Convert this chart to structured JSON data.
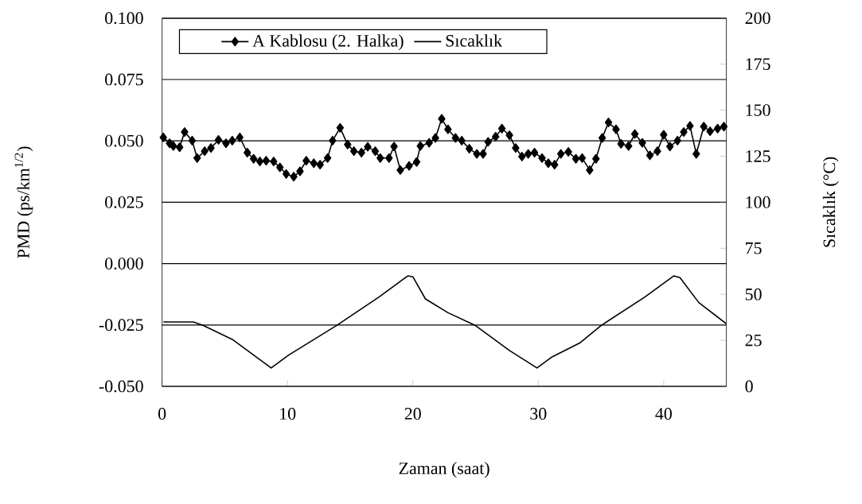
{
  "chart_data": {
    "type": "line",
    "xlabel": "Zaman (saat)",
    "ylabel": "PMD (ps/km$^{1/2}$)",
    "y2label": "Sıcaklık (°C)",
    "xlim": [
      0,
      45
    ],
    "xticks": [
      0,
      10,
      20,
      30,
      40
    ],
    "ylim": [
      -0.05,
      0.1
    ],
    "yticks": [
      {
        "value": -0.05,
        "label": "-0.050"
      },
      {
        "value": -0.025,
        "label": "-0.025"
      },
      {
        "value": 0,
        "label": "0.000"
      },
      {
        "value": 0.025,
        "label": "0.025"
      },
      {
        "value": 0.05,
        "label": "0.050"
      },
      {
        "value": 0.075,
        "label": "0.075"
      },
      {
        "value": 0.1,
        "label": "0.100"
      }
    ],
    "y2lim": [
      0,
      200
    ],
    "y2ticks": [
      0,
      25,
      50,
      75,
      100,
      125,
      150,
      175,
      200
    ],
    "grid": "y",
    "legend": "top left",
    "series": [
      {
        "name": "A Kablosu (2. Halka)",
        "marker": "diamond",
        "color": "#000000",
        "x": [
          0.1,
          0.6,
          0.9,
          1.4,
          1.8,
          2.4,
          2.8,
          3.4,
          3.9,
          4.5,
          5.1,
          5.6,
          6.2,
          6.8,
          7.3,
          7.8,
          8.3,
          8.9,
          9.4,
          9.9,
          10.5,
          11.0,
          11.5,
          12.1,
          12.6,
          13.2,
          13.6,
          14.2,
          14.8,
          15.3,
          15.9,
          16.4,
          17.0,
          17.4,
          18.1,
          18.5,
          19.0,
          19.7,
          20.3,
          20.6,
          21.3,
          21.8,
          22.3,
          22.8,
          23.4,
          23.9,
          24.5,
          25.1,
          25.6,
          26.0,
          26.6,
          27.1,
          27.7,
          28.2,
          28.7,
          29.2,
          29.7,
          30.3,
          30.8,
          31.3,
          31.8,
          32.4,
          33.0,
          33.5,
          34.1,
          34.6,
          35.1,
          35.6,
          36.2,
          36.6,
          37.2,
          37.7,
          38.3,
          38.9,
          39.5,
          40.0,
          40.5,
          41.1,
          41.6,
          42.1,
          42.6,
          43.2,
          43.7,
          44.3,
          44.8
        ],
        "values": [
          0.0514,
          0.049,
          0.0479,
          0.0474,
          0.0536,
          0.0501,
          0.043,
          0.0458,
          0.0471,
          0.0504,
          0.049,
          0.0501,
          0.0514,
          0.0452,
          0.0427,
          0.0416,
          0.0419,
          0.0416,
          0.0392,
          0.0365,
          0.0354,
          0.0376,
          0.0419,
          0.0409,
          0.0403,
          0.043,
          0.0501,
          0.0553,
          0.0485,
          0.0458,
          0.0452,
          0.0476,
          0.0458,
          0.043,
          0.043,
          0.0477,
          0.0381,
          0.0398,
          0.0414,
          0.0479,
          0.0492,
          0.0512,
          0.059,
          0.0547,
          0.0512,
          0.0501,
          0.0468,
          0.0447,
          0.0447,
          0.0496,
          0.0517,
          0.055,
          0.0523,
          0.0471,
          0.0436,
          0.0447,
          0.0452,
          0.043,
          0.0409,
          0.0403,
          0.0447,
          0.0455,
          0.0427,
          0.043,
          0.0381,
          0.0427,
          0.0512,
          0.0575,
          0.0547,
          0.0488,
          0.0479,
          0.0528,
          0.0492,
          0.0441,
          0.0458,
          0.0525,
          0.0477,
          0.0501,
          0.0536,
          0.0561,
          0.0447,
          0.0558,
          0.0539,
          0.055,
          0.0558
        ]
      },
      {
        "name": "Sıcaklık",
        "axis": "y2",
        "color": "#000000",
        "x": [
          0.1,
          2.5,
          3.3,
          5.6,
          8.7,
          10.1,
          13.9,
          17.3,
          19.6,
          20.0,
          21.0,
          22.8,
          25.0,
          27.7,
          29.9,
          31.1,
          33.3,
          35.0,
          38.5,
          40.8,
          41.3,
          42.8,
          45.0
        ],
        "values": [
          35,
          35,
          33,
          25.5,
          10,
          17,
          33,
          48.5,
          60,
          59.5,
          47.5,
          40,
          33,
          19.5,
          10,
          16,
          23.5,
          33,
          48.5,
          60,
          59,
          45.5,
          34
        ]
      }
    ]
  }
}
